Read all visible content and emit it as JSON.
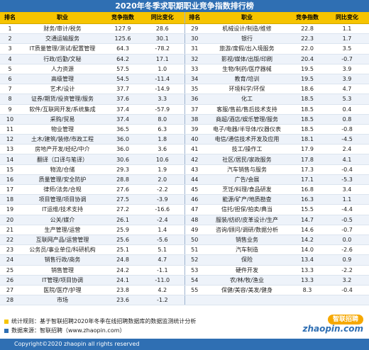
{
  "title": "2020年冬季求职期职业竞争指数排行榜",
  "headers": {
    "rank": "排名",
    "job": "职业",
    "index": "竞争指数",
    "change": "同比变化"
  },
  "left_rows": [
    {
      "rank": "1",
      "job": "财务/审计/税务",
      "index": "127.9",
      "change": "28.6"
    },
    {
      "rank": "2",
      "job": "交通运输服务",
      "index": "125.6",
      "change": "30.1"
    },
    {
      "rank": "3",
      "job": "IT质量管理/测试/配置管理",
      "index": "64.3",
      "change": "-78.2"
    },
    {
      "rank": "4",
      "job": "行政/后勤/文秘",
      "index": "64.2",
      "change": "17.1"
    },
    {
      "rank": "5",
      "job": "人力资源",
      "index": "57.5",
      "change": "1.0"
    },
    {
      "rank": "6",
      "job": "高级管理",
      "index": "54.5",
      "change": "-11.4"
    },
    {
      "rank": "7",
      "job": "艺术/设计",
      "index": "37.7",
      "change": "-14.9"
    },
    {
      "rank": "8",
      "job": "证券/期货/投资管理/服务",
      "index": "37.6",
      "change": "3.3"
    },
    {
      "rank": "9",
      "job": "软件/互联网开发/系统集成",
      "index": "37.4",
      "change": "-57.9"
    },
    {
      "rank": "10",
      "job": "采购/贸易",
      "index": "37.4",
      "change": "8.0"
    },
    {
      "rank": "11",
      "job": "物业管理",
      "index": "36.5",
      "change": "6.3"
    },
    {
      "rank": "12",
      "job": "土木/建筑/装修/市政工程",
      "index": "36.0",
      "change": "1.8"
    },
    {
      "rank": "13",
      "job": "房地产开发/经纪/中介",
      "index": "36.0",
      "change": "3.6"
    },
    {
      "rank": "14",
      "job": "翻译（口译与笔译）",
      "index": "30.6",
      "change": "10.6"
    },
    {
      "rank": "15",
      "job": "物流/仓储",
      "index": "29.3",
      "change": "1.9"
    },
    {
      "rank": "16",
      "job": "质量管理/安全防护",
      "index": "28.8",
      "change": "2.0"
    },
    {
      "rank": "17",
      "job": "律师/法务/合规",
      "index": "27.6",
      "change": "-2.2"
    },
    {
      "rank": "18",
      "job": "项目管理/项目协调",
      "index": "27.5",
      "change": "-3.9"
    },
    {
      "rank": "19",
      "job": "IT运维/技术支持",
      "index": "27.2",
      "change": "-16.6"
    },
    {
      "rank": "20",
      "job": "公关/媒介",
      "index": "26.1",
      "change": "-2.4"
    },
    {
      "rank": "21",
      "job": "生产管理/运营",
      "index": "25.9",
      "change": "1.4"
    },
    {
      "rank": "22",
      "job": "互联网产品/运营管理",
      "index": "25.6",
      "change": "-5.6"
    },
    {
      "rank": "23",
      "job": "公务员/事业单位/科研机构",
      "index": "25.1",
      "change": "5.1"
    },
    {
      "rank": "24",
      "job": "销售行政/商务",
      "index": "24.8",
      "change": "4.7"
    },
    {
      "rank": "25",
      "job": "销售管理",
      "index": "24.2",
      "change": "-1.1"
    },
    {
      "rank": "26",
      "job": "IT管理/项目协调",
      "index": "24.1",
      "change": "-11.0"
    },
    {
      "rank": "27",
      "job": "医院/医疗/护理",
      "index": "23.8",
      "change": "4.2"
    },
    {
      "rank": "28",
      "job": "市场",
      "index": "23.6",
      "change": "-1.2"
    }
  ],
  "right_rows": [
    {
      "rank": "29",
      "job": "机械设计/制造/维修",
      "index": "22.8",
      "change": "1.1"
    },
    {
      "rank": "30",
      "job": "银行",
      "index": "22.3",
      "change": "1.7"
    },
    {
      "rank": "31",
      "job": "旅游/度假/出入境服务",
      "index": "22.0",
      "change": "3.5"
    },
    {
      "rank": "32",
      "job": "影视/媒体/出版/印刷",
      "index": "20.4",
      "change": "-0.7"
    },
    {
      "rank": "33",
      "job": "生物/制药/医疗器械",
      "index": "19.5",
      "change": "3.9"
    },
    {
      "rank": "34",
      "job": "教育/培训",
      "index": "19.5",
      "change": "3.9"
    },
    {
      "rank": "35",
      "job": "环境科学/环保",
      "index": "18.6",
      "change": "4.7"
    },
    {
      "rank": "36",
      "job": "化工",
      "index": "18.5",
      "change": "5.3"
    },
    {
      "rank": "37",
      "job": "客服/售前/售后技术支持",
      "index": "18.5",
      "change": "0.4"
    },
    {
      "rank": "38",
      "job": "商超/酒店/娱乐管理/服务",
      "index": "18.5",
      "change": "0.8"
    },
    {
      "rank": "39",
      "job": "电子/电器/半导体/仪器仪表",
      "index": "18.5",
      "change": "-0.8"
    },
    {
      "rank": "40",
      "job": "电信/通信技术开发及应用",
      "index": "18.1",
      "change": "-4.5"
    },
    {
      "rank": "41",
      "job": "技工/操作工",
      "index": "17.9",
      "change": "2.4"
    },
    {
      "rank": "42",
      "job": "社区/居民/家政服务",
      "index": "17.8",
      "change": "4.1"
    },
    {
      "rank": "43",
      "job": "汽车销售与服务",
      "index": "17.3",
      "change": "-0.4"
    },
    {
      "rank": "44",
      "job": "广告/会展",
      "index": "17.1",
      "change": "-5.3"
    },
    {
      "rank": "45",
      "job": "烹饪/料理/食品研发",
      "index": "16.8",
      "task": "",
      "change": "3.4"
    },
    {
      "rank": "46",
      "job": "能源/矿产/地质勘查",
      "index": "16.3",
      "change": "1.1"
    },
    {
      "rank": "47",
      "job": "信托/担保/拍卖/典当",
      "index": "15.5",
      "change": "-4.4"
    },
    {
      "rank": "48",
      "job": "服装/纺织/皮革设计/生产",
      "index": "14.7",
      "change": "-0.5"
    },
    {
      "rank": "49",
      "job": "咨询/顾问/调研/数据分析",
      "index": "14.6",
      "change": "-0.7"
    },
    {
      "rank": "50",
      "job": "销售业务",
      "index": "14.2",
      "change": "0.0"
    },
    {
      "rank": "51",
      "job": "汽车制造",
      "index": "14.0",
      "change": "-2.6"
    },
    {
      "rank": "52",
      "job": "保险",
      "index": "13.4",
      "change": "0.9"
    },
    {
      "rank": "53",
      "job": "硬件开发",
      "index": "13.3",
      "change": "-2.2"
    },
    {
      "rank": "54",
      "job": "农/林/牧/渔业",
      "index": "13.3",
      "change": "3.2"
    },
    {
      "rank": "55",
      "job": "保健/美容/美发/健身",
      "index": "8.3",
      "change": "-0.4"
    }
  ],
  "footer": {
    "note1": "统计规则：基于智联招聘2020年冬季在线招聘数据库的数据监测统计分析",
    "note2": "数据来源：智联招聘（www.zhaopin.com）",
    "logo_badge": "智联招聘",
    "logo_text": "zhaopin.com",
    "copyright": "Copyright©2020 zhaopin all rights reserved"
  },
  "colors": {
    "header_bg": "#f6c400",
    "title_bg": "#2f6fb3",
    "alt_row": "#eef3fa"
  }
}
